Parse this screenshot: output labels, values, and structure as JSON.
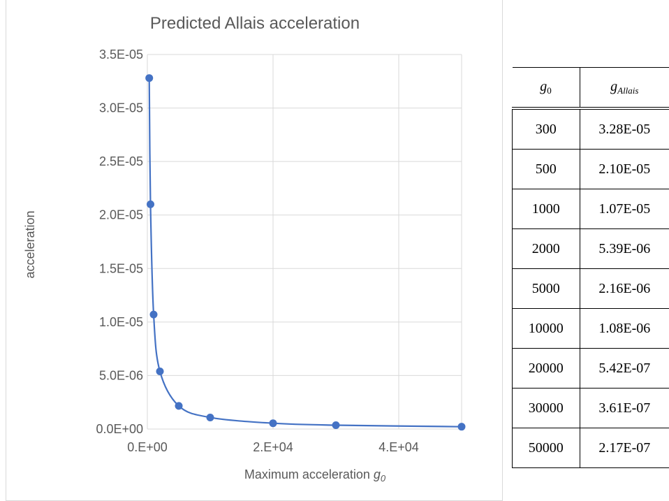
{
  "chart_data": {
    "type": "scatter",
    "title": "Predicted Allais acceleration",
    "xlabel": "Maximum acceleration",
    "xlabel_symbol": "g",
    "xlabel_sub": "0",
    "ylabel": "acceleration",
    "xlim": [
      0,
      50000
    ],
    "ylim": [
      0,
      3.5e-05
    ],
    "x_ticks": [
      0,
      20000,
      40000
    ],
    "x_tick_labels": [
      "0.E+00",
      "2.E+04",
      "4.E+04"
    ],
    "y_ticks": [
      0,
      5e-06,
      1e-05,
      1.5e-05,
      2e-05,
      2.5e-05,
      3e-05,
      3.5e-05
    ],
    "y_tick_labels": [
      "0.0E+00",
      "5.0E-06",
      "1.0E-05",
      "1.5E-05",
      "2.0E-05",
      "2.5E-05",
      "3.0E-05",
      "3.5E-05"
    ],
    "grid": true,
    "smoothed_line": true,
    "series": [
      {
        "color": "#4472c4",
        "x": [
          300,
          500,
          1000,
          2000,
          5000,
          10000,
          20000,
          30000,
          50000
        ],
        "y": [
          3.28e-05,
          2.1e-05,
          1.07e-05,
          5.39e-06,
          2.16e-06,
          1.08e-06,
          5.42e-07,
          3.61e-07,
          2.17e-07
        ]
      }
    ]
  },
  "table": {
    "header_col1_symbol": "g",
    "header_col1_sub": "0",
    "header_col2_symbol": "g",
    "header_col2_sub": "Allais",
    "rows": [
      {
        "g0": "300",
        "gAllais": "3.28E-05"
      },
      {
        "g0": "500",
        "gAllais": "2.10E-05"
      },
      {
        "g0": "1000",
        "gAllais": "1.07E-05"
      },
      {
        "g0": "2000",
        "gAllais": "5.39E-06"
      },
      {
        "g0": "5000",
        "gAllais": "2.16E-06"
      },
      {
        "g0": "10000",
        "gAllais": "1.08E-06"
      },
      {
        "g0": "20000",
        "gAllais": "5.42E-07"
      },
      {
        "g0": "30000",
        "gAllais": "3.61E-07"
      },
      {
        "g0": "50000",
        "gAllais": "2.17E-07"
      }
    ]
  }
}
